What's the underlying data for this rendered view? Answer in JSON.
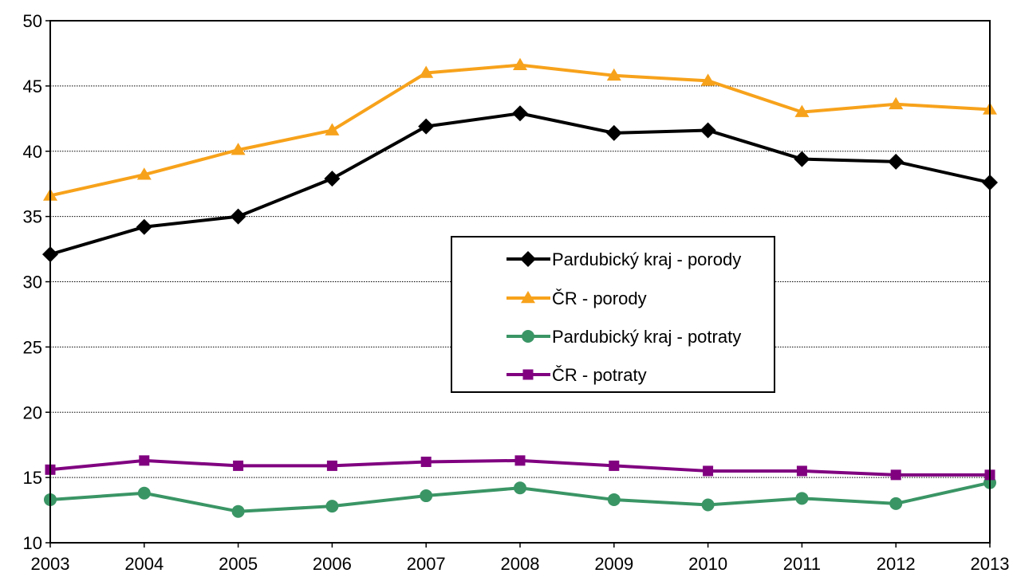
{
  "chart_data": {
    "type": "line",
    "title": "",
    "xlabel": "",
    "ylabel": "",
    "x": [
      "2003",
      "2004",
      "2005",
      "2006",
      "2007",
      "2008",
      "2009",
      "2010",
      "2011",
      "2012",
      "2013"
    ],
    "ylim": [
      10,
      50
    ],
    "yticks": [
      "10",
      "15",
      "20",
      "25",
      "30",
      "35",
      "40",
      "45",
      "50"
    ],
    "grid": "horizontal dotted",
    "legend_position": "center-right",
    "series": [
      {
        "name": "Pardubický kraj - porody",
        "color": "#000000",
        "marker": "diamond",
        "values": [
          32.1,
          34.2,
          35.0,
          37.9,
          41.9,
          42.9,
          41.4,
          41.6,
          39.4,
          39.2,
          37.6
        ]
      },
      {
        "name": "ČR - porody",
        "color": "#f7a21b",
        "marker": "triangle",
        "values": [
          36.6,
          38.2,
          40.1,
          41.6,
          46.0,
          46.6,
          45.8,
          45.4,
          43.0,
          43.6,
          43.2
        ]
      },
      {
        "name": "Pardubický kraj - potraty",
        "color": "#3a9565",
        "marker": "circle",
        "values": [
          13.3,
          13.8,
          12.4,
          12.8,
          13.6,
          14.2,
          13.3,
          12.9,
          13.4,
          13.0,
          14.6
        ]
      },
      {
        "name": "ČR - potraty",
        "color": "#800080",
        "marker": "square",
        "values": [
          15.6,
          16.3,
          15.9,
          15.9,
          16.2,
          16.3,
          15.9,
          15.5,
          15.5,
          15.2,
          15.2
        ]
      }
    ]
  }
}
